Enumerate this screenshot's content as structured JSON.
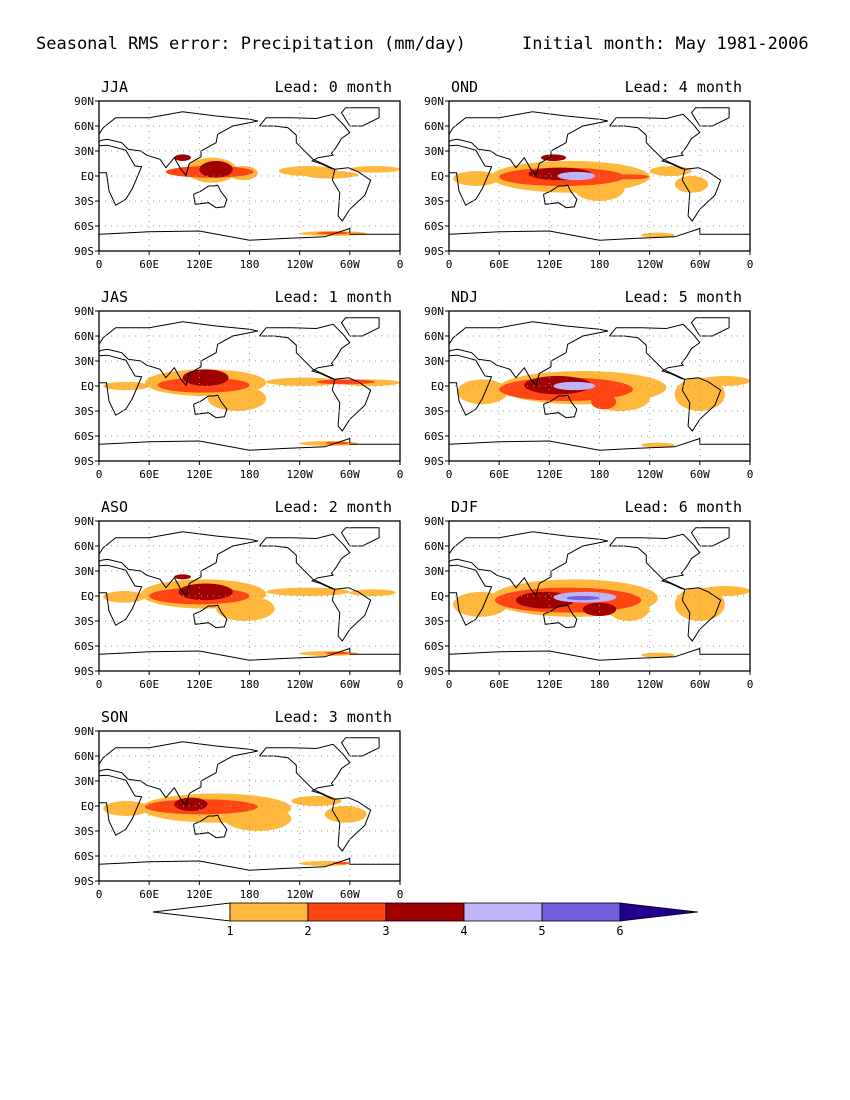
{
  "header": {
    "title": "Seasonal RMS error: Precipitation (mm/day)",
    "initial_month": "Initial month: May 1981-2006"
  },
  "chart_data": [
    {
      "type": "heatmap",
      "season": "JJA",
      "lead": "Lead: 0 month",
      "lead_months": 0,
      "ylabels": [
        "90N",
        "60N",
        "30N",
        "EQ",
        "30S",
        "60S",
        "90S"
      ],
      "xlabels": [
        "0",
        "60E",
        "120E",
        "180",
        "120W",
        "60W",
        "0"
      ],
      "max_level": 3,
      "regions": [
        [
          0,
          1,
          155,
          190,
          12,
          -5
        ],
        [
          1,
          1,
          105,
          165,
          22,
          -8
        ],
        [
          1,
          2,
          80,
          185,
          12,
          -2
        ],
        [
          2,
          1,
          215,
          285,
          12,
          0
        ],
        [
          3,
          1,
          245,
          310,
          6,
          -3
        ],
        [
          4,
          1,
          300,
          360,
          12,
          4
        ],
        [
          5,
          1,
          240,
          320,
          -66,
          -72
        ],
        [
          6,
          2,
          260,
          300,
          -67,
          -70
        ],
        [
          7,
          3,
          120,
          160,
          18,
          -2
        ],
        [
          8,
          3,
          90,
          110,
          26,
          18
        ]
      ]
    },
    {
      "type": "heatmap",
      "season": "OND",
      "lead": "Lead: 4 month",
      "lead_months": 4,
      "ylabels": [
        "90N",
        "60N",
        "30N",
        "EQ",
        "30S",
        "60S",
        "90S"
      ],
      "xlabels": [
        "0",
        "60E",
        "120E",
        "180",
        "120W",
        "60W",
        "0"
      ],
      "max_level": 4,
      "regions": [
        [
          0,
          1,
          5,
          60,
          6,
          -12
        ],
        [
          1,
          1,
          50,
          240,
          18,
          -20
        ],
        [
          2,
          1,
          150,
          210,
          0,
          -30
        ],
        [
          3,
          1,
          240,
          290,
          12,
          0
        ],
        [
          4,
          1,
          270,
          310,
          0,
          -20
        ],
        [
          5,
          1,
          230,
          270,
          -68,
          -74
        ],
        [
          6,
          2,
          60,
          210,
          10,
          -12
        ],
        [
          7,
          3,
          95,
          170,
          10,
          -5
        ],
        [
          8,
          4,
          130,
          175,
          5,
          -5
        ],
        [
          9,
          2,
          190,
          240,
          2,
          -4
        ],
        [
          10,
          3,
          110,
          140,
          26,
          18
        ]
      ]
    },
    {
      "type": "heatmap",
      "season": "JAS",
      "lead": "Lead: 1 month",
      "lead_months": 1,
      "ylabels": [
        "90N",
        "60N",
        "30N",
        "EQ",
        "30S",
        "60S",
        "90S"
      ],
      "xlabels": [
        "0",
        "60E",
        "120E",
        "180",
        "120W",
        "60W",
        "0"
      ],
      "max_level": 3,
      "regions": [
        [
          0,
          1,
          5,
          60,
          5,
          -5
        ],
        [
          1,
          1,
          55,
          200,
          20,
          -12
        ],
        [
          2,
          1,
          130,
          200,
          0,
          -30
        ],
        [
          3,
          1,
          200,
          290,
          10,
          0
        ],
        [
          4,
          1,
          290,
          360,
          8,
          0
        ],
        [
          5,
          1,
          240,
          310,
          -66,
          -72
        ],
        [
          6,
          2,
          70,
          180,
          10,
          -8
        ],
        [
          7,
          3,
          100,
          155,
          20,
          0
        ],
        [
          8,
          2,
          260,
          330,
          8,
          2
        ],
        [
          9,
          2,
          270,
          300,
          -67,
          -70
        ]
      ]
    },
    {
      "type": "heatmap",
      "season": "NDJ",
      "lead": "Lead: 5 month",
      "lead_months": 5,
      "ylabels": [
        "90N",
        "60N",
        "30N",
        "EQ",
        "30S",
        "60S",
        "90S"
      ],
      "xlabels": [
        "0",
        "60E",
        "120E",
        "180",
        "120W",
        "60W",
        "0"
      ],
      "max_level": 4,
      "regions": [
        [
          0,
          1,
          10,
          70,
          8,
          -22
        ],
        [
          1,
          1,
          60,
          260,
          18,
          -22
        ],
        [
          2,
          1,
          170,
          240,
          0,
          -30
        ],
        [
          3,
          1,
          270,
          330,
          10,
          -30
        ],
        [
          4,
          1,
          300,
          360,
          12,
          0
        ],
        [
          5,
          1,
          230,
          270,
          -68,
          -74
        ],
        [
          6,
          2,
          60,
          220,
          10,
          -18
        ],
        [
          7,
          3,
          90,
          170,
          12,
          -10
        ],
        [
          8,
          4,
          125,
          175,
          5,
          -5
        ],
        [
          9,
          2,
          170,
          200,
          -10,
          -28
        ]
      ]
    },
    {
      "type": "heatmap",
      "season": "ASO",
      "lead": "Lead: 2 month",
      "lead_months": 2,
      "ylabels": [
        "90N",
        "60N",
        "30N",
        "EQ",
        "30S",
        "60S",
        "90S"
      ],
      "xlabels": [
        "0",
        "60E",
        "120E",
        "180",
        "120W",
        "60W",
        "0"
      ],
      "max_level": 3,
      "regions": [
        [
          0,
          1,
          5,
          55,
          6,
          -8
        ],
        [
          1,
          1,
          50,
          200,
          20,
          -15
        ],
        [
          2,
          1,
          140,
          210,
          0,
          -30
        ],
        [
          3,
          1,
          200,
          300,
          10,
          0
        ],
        [
          4,
          1,
          300,
          355,
          8,
          0
        ],
        [
          5,
          1,
          240,
          310,
          -66,
          -72
        ],
        [
          6,
          2,
          60,
          180,
          10,
          -10
        ],
        [
          7,
          3,
          95,
          160,
          15,
          -5
        ],
        [
          8,
          2,
          270,
          300,
          -67,
          -70
        ],
        [
          9,
          3,
          90,
          110,
          26,
          20
        ]
      ]
    },
    {
      "type": "heatmap",
      "season": "DJF",
      "lead": "Lead: 6 month",
      "lead_months": 6,
      "ylabels": [
        "90N",
        "60N",
        "30N",
        "EQ",
        "30S",
        "60S",
        "90S"
      ],
      "xlabels": [
        "0",
        "60E",
        "120E",
        "180",
        "120W",
        "60W",
        "0"
      ],
      "max_level": 5,
      "regions": [
        [
          0,
          1,
          5,
          70,
          5,
          -25
        ],
        [
          1,
          1,
          50,
          250,
          20,
          -25
        ],
        [
          2,
          1,
          190,
          240,
          0,
          -30
        ],
        [
          3,
          1,
          270,
          330,
          10,
          -30
        ],
        [
          4,
          1,
          300,
          360,
          12,
          0
        ],
        [
          5,
          1,
          230,
          270,
          -68,
          -74
        ],
        [
          6,
          2,
          55,
          230,
          10,
          -20
        ],
        [
          7,
          3,
          80,
          150,
          5,
          -15
        ],
        [
          8,
          4,
          125,
          200,
          5,
          -8
        ],
        [
          9,
          5,
          140,
          180,
          0,
          -5
        ],
        [
          10,
          3,
          160,
          200,
          -8,
          -24
        ]
      ]
    },
    {
      "type": "heatmap",
      "season": "SON",
      "lead": "Lead: 3 month",
      "lead_months": 3,
      "ylabels": [
        "90N",
        "60N",
        "30N",
        "EQ",
        "30S",
        "60S",
        "90S"
      ],
      "xlabels": [
        "0",
        "60E",
        "120E",
        "180",
        "120W",
        "60W",
        "0"
      ],
      "max_level": 3,
      "regions": [
        [
          0,
          1,
          5,
          60,
          6,
          -12
        ],
        [
          1,
          1,
          50,
          230,
          15,
          -20
        ],
        [
          2,
          1,
          150,
          230,
          0,
          -30
        ],
        [
          3,
          1,
          230,
          290,
          12,
          0
        ],
        [
          4,
          1,
          270,
          320,
          0,
          -20
        ],
        [
          5,
          1,
          240,
          300,
          -66,
          -72
        ],
        [
          6,
          2,
          55,
          190,
          8,
          -10
        ],
        [
          7,
          3,
          90,
          130,
          10,
          -6
        ],
        [
          8,
          2,
          280,
          300,
          -67,
          -70
        ]
      ]
    }
  ],
  "colorbar": {
    "boundaries": [
      "1",
      "2",
      "3",
      "4",
      "5",
      "6"
    ],
    "levels": [
      {
        "min": 1,
        "max": 2,
        "color": "#ffb83c"
      },
      {
        "min": 2,
        "max": 3,
        "color": "#ff4612"
      },
      {
        "min": 3,
        "max": 4,
        "color": "#a00000"
      },
      {
        "min": 4,
        "max": 5,
        "color": "#c2b4f8"
      },
      {
        "min": 5,
        "max": 6,
        "color": "#7260de"
      },
      {
        "min": 6,
        "max": null,
        "color": "#20008c"
      }
    ],
    "below_color": "#ffffff"
  }
}
